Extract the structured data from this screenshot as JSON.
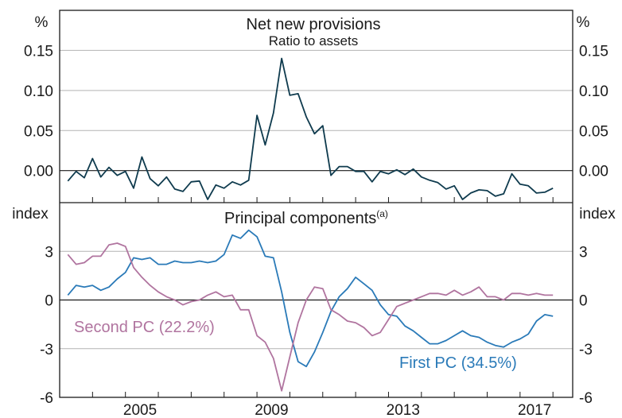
{
  "colors": {
    "provisions": "#0f3b4e",
    "first_pc": "#2a7ab8",
    "second_pc": "#b0749f",
    "grid": "#b3b3b3",
    "frame": "#1a1a1a"
  },
  "chart_data": [
    {
      "type": "line",
      "title": "Net new provisions",
      "subtitle": "Ratio to assets",
      "unit_left": "%",
      "unit_right": "%",
      "ylim": [
        -0.04,
        0.2
      ],
      "yticks": [
        0.0,
        0.05,
        0.1,
        0.15
      ],
      "ytick_labels": [
        "0.00",
        "0.05",
        "0.10",
        "0.15"
      ],
      "xlim": [
        2002.0,
        2017.6
      ],
      "grid": true,
      "series": [
        {
          "x": [
            2002.25,
            2002.5,
            2002.75,
            2003.0,
            2003.25,
            2003.5,
            2003.75,
            2004.0,
            2004.25,
            2004.5,
            2004.75,
            2005.0,
            2005.25,
            2005.5,
            2005.75,
            2006.0,
            2006.25,
            2006.5,
            2006.75,
            2007.0,
            2007.25,
            2007.5,
            2007.75,
            2008.0,
            2008.25,
            2008.5,
            2008.75,
            2009.0,
            2009.25,
            2009.5,
            2009.75,
            2010.0,
            2010.25,
            2010.5,
            2010.75,
            2011.0,
            2011.25,
            2011.5,
            2011.75,
            2012.0,
            2012.25,
            2012.5,
            2012.75,
            2013.0,
            2013.25,
            2013.5,
            2013.75,
            2014.0,
            2014.25,
            2014.5,
            2014.75,
            2015.0,
            2015.25,
            2015.5,
            2015.75,
            2016.0,
            2016.25,
            2016.5,
            2016.75,
            2017.0
          ],
          "values": [
            -0.013,
            -0.001,
            -0.009,
            0.015,
            -0.008,
            0.004,
            -0.006,
            -0.001,
            -0.022,
            0.017,
            -0.01,
            -0.019,
            -0.008,
            -0.023,
            -0.026,
            -0.014,
            -0.013,
            -0.036,
            -0.018,
            -0.022,
            -0.014,
            -0.018,
            -0.012,
            0.069,
            0.032,
            0.072,
            0.14,
            0.094,
            0.096,
            0.067,
            0.046,
            0.056,
            -0.006,
            0.005,
            0.005,
            -0.001,
            -0.001,
            -0.014,
            -0.001,
            -0.004,
            0.001,
            -0.005,
            0.002,
            -0.008,
            -0.012,
            -0.015,
            -0.023,
            -0.019,
            -0.036,
            -0.028,
            -0.024,
            -0.025,
            -0.032,
            -0.029,
            -0.004,
            -0.017,
            -0.019,
            -0.028,
            -0.027,
            -0.022
          ]
        }
      ]
    },
    {
      "type": "line",
      "title": "Principal components",
      "title_sup": "(a)",
      "unit_left": "index",
      "unit_right": "index",
      "ylim": [
        -6,
        6
      ],
      "yticks": [
        -6,
        -3,
        0,
        3
      ],
      "ytick_labels": [
        "-6",
        "-3",
        "0",
        "3"
      ],
      "xlim": [
        2002.0,
        2017.6
      ],
      "xticks": [
        2005,
        2009,
        2013,
        2017
      ],
      "xtick_labels": [
        "2005",
        "2009",
        "2013",
        "2017"
      ],
      "grid": true,
      "series": [
        {
          "name": "First PC (34.5%)",
          "color_key": "first_pc",
          "x": [
            2002.25,
            2002.5,
            2002.75,
            2003.0,
            2003.25,
            2003.5,
            2003.75,
            2004.0,
            2004.25,
            2004.5,
            2004.75,
            2005.0,
            2005.25,
            2005.5,
            2005.75,
            2006.0,
            2006.25,
            2006.5,
            2006.75,
            2007.0,
            2007.25,
            2007.5,
            2007.75,
            2008.0,
            2008.25,
            2008.5,
            2008.75,
            2009.0,
            2009.25,
            2009.5,
            2009.75,
            2010.0,
            2010.25,
            2010.5,
            2010.75,
            2011.0,
            2011.25,
            2011.5,
            2011.75,
            2012.0,
            2012.25,
            2012.5,
            2012.75,
            2013.0,
            2013.25,
            2013.5,
            2013.75,
            2014.0,
            2014.25,
            2014.5,
            2014.75,
            2015.0,
            2015.25,
            2015.5,
            2015.75,
            2016.0,
            2016.25,
            2016.5,
            2016.75,
            2017.0
          ],
          "values": [
            0.3,
            0.9,
            0.8,
            0.9,
            0.6,
            0.8,
            1.3,
            1.7,
            2.6,
            2.5,
            2.6,
            2.2,
            2.2,
            2.4,
            2.3,
            2.3,
            2.4,
            2.3,
            2.4,
            2.8,
            4.0,
            3.8,
            4.3,
            3.9,
            2.7,
            2.6,
            0.5,
            -2.0,
            -3.8,
            -4.1,
            -3.2,
            -2.0,
            -0.7,
            0.2,
            0.7,
            1.4,
            1.0,
            0.6,
            -0.3,
            -0.9,
            -1.0,
            -1.6,
            -1.9,
            -2.3,
            -2.7,
            -2.7,
            -2.5,
            -2.2,
            -1.9,
            -2.2,
            -2.3,
            -2.6,
            -2.8,
            -2.9,
            -2.6,
            -2.4,
            -2.1,
            -1.3,
            -0.9,
            -1.0
          ]
        },
        {
          "name": "Second PC (22.2%)",
          "color_key": "second_pc",
          "x": [
            2002.25,
            2002.5,
            2002.75,
            2003.0,
            2003.25,
            2003.5,
            2003.75,
            2004.0,
            2004.25,
            2004.5,
            2004.75,
            2005.0,
            2005.25,
            2005.5,
            2005.75,
            2006.0,
            2006.25,
            2006.5,
            2006.75,
            2007.0,
            2007.25,
            2007.5,
            2007.75,
            2008.0,
            2008.25,
            2008.5,
            2008.75,
            2009.0,
            2009.25,
            2009.5,
            2009.75,
            2010.0,
            2010.25,
            2010.5,
            2010.75,
            2011.0,
            2011.25,
            2011.5,
            2011.75,
            2012.0,
            2012.25,
            2012.5,
            2012.75,
            2013.0,
            2013.25,
            2013.5,
            2013.75,
            2014.0,
            2014.25,
            2014.5,
            2014.75,
            2015.0,
            2015.25,
            2015.5,
            2015.75,
            2016.0,
            2016.25,
            2016.5,
            2016.75,
            2017.0
          ],
          "values": [
            2.8,
            2.2,
            2.3,
            2.7,
            2.7,
            3.4,
            3.5,
            3.3,
            2.0,
            1.4,
            0.9,
            0.5,
            0.2,
            0.0,
            -0.3,
            -0.1,
            0.0,
            0.3,
            0.5,
            0.2,
            0.3,
            -0.6,
            -0.6,
            -2.2,
            -2.6,
            -3.6,
            -5.6,
            -3.5,
            -1.4,
            0.0,
            0.8,
            0.7,
            -0.6,
            -0.9,
            -1.3,
            -1.4,
            -1.7,
            -2.2,
            -2.0,
            -1.2,
            -0.4,
            -0.2,
            0.0,
            0.2,
            0.4,
            0.4,
            0.3,
            0.6,
            0.3,
            0.5,
            0.8,
            0.2,
            0.2,
            0.0,
            0.4,
            0.4,
            0.3,
            0.4,
            0.3,
            0.3
          ]
        }
      ]
    }
  ]
}
